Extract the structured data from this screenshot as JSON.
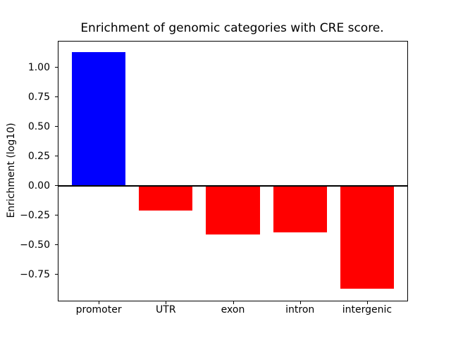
{
  "chart_data": {
    "type": "bar",
    "title": "Enrichment of genomic categories with CRE score.",
    "xlabel": "",
    "ylabel": "Enrichment (log10)",
    "categories": [
      "promoter",
      "UTR",
      "exon",
      "intron",
      "intergenic"
    ],
    "values": [
      1.13,
      -0.21,
      -0.41,
      -0.39,
      -0.87
    ],
    "bar_colors": [
      "#0000ff",
      "#ff0000",
      "#ff0000",
      "#ff0000",
      "#ff0000"
    ],
    "positive_color": "#0000ff",
    "negative_color": "#ff0000",
    "bar_width": 0.8,
    "xlim": [
      -0.6,
      4.6
    ],
    "ylim": [
      -0.97,
      1.22
    ],
    "ytick_values": [
      1.0,
      0.75,
      0.5,
      0.25,
      0.0,
      -0.25,
      -0.5,
      -0.75
    ],
    "ytick_labels": [
      "1.00",
      "0.75",
      "0.50",
      "0.25",
      "0.00",
      "−0.25",
      "−0.50",
      "−0.75"
    ],
    "grid": false,
    "legend": null,
    "zero_line": true,
    "axis_color": "#000000",
    "background_color": "#ffffff"
  }
}
